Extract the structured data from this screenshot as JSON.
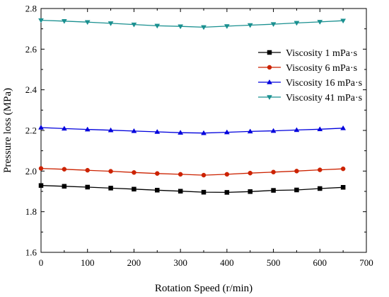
{
  "chart_data": {
    "type": "line",
    "xlabel": "Rotation Speed (r/min)",
    "ylabel": "Pressure loss (MPa)",
    "xlim": [
      0,
      700
    ],
    "ylim": [
      1.6,
      2.8
    ],
    "xticks": [
      0,
      100,
      200,
      300,
      400,
      500,
      600,
      700
    ],
    "yticks": [
      1.6,
      1.8,
      2.0,
      2.2,
      2.4,
      2.6,
      2.8
    ],
    "xtick_labels": [
      "0",
      "100",
      "200",
      "300",
      "400",
      "500",
      "600",
      "700"
    ],
    "ytick_labels": [
      "1.6",
      "1.8",
      "2.0",
      "2.2",
      "2.4",
      "2.6",
      "2.8"
    ],
    "grid": false,
    "legend_position": "top-right",
    "x": [
      0,
      50,
      100,
      150,
      200,
      250,
      300,
      350,
      400,
      450,
      500,
      550,
      600,
      650
    ],
    "series": [
      {
        "name": "Viscosity 1 mPa·s",
        "color": "#000000",
        "marker": "square",
        "values": [
          1.929,
          1.925,
          1.921,
          1.916,
          1.911,
          1.906,
          1.901,
          1.896,
          1.895,
          1.899,
          1.905,
          1.907,
          1.914,
          1.92
        ]
      },
      {
        "name": "Viscosity 6 mPa·s",
        "color": "#cc2200",
        "marker": "circle",
        "values": [
          2.013,
          2.009,
          2.004,
          1.999,
          1.993,
          1.988,
          1.984,
          1.98,
          1.984,
          1.99,
          1.995,
          2.0,
          2.006,
          2.011
        ]
      },
      {
        "name": "Viscosity 16 mPa·s",
        "color": "#0000dd",
        "marker": "triangle-up",
        "values": [
          2.214,
          2.209,
          2.205,
          2.201,
          2.197,
          2.193,
          2.189,
          2.187,
          2.191,
          2.195,
          2.198,
          2.202,
          2.206,
          2.211
        ]
      },
      {
        "name": "Viscosity 41 mPa·s",
        "color": "#1a9090",
        "marker": "triangle-down",
        "values": [
          2.742,
          2.738,
          2.733,
          2.727,
          2.721,
          2.715,
          2.712,
          2.708,
          2.713,
          2.718,
          2.723,
          2.729,
          2.734,
          2.74
        ]
      }
    ]
  }
}
